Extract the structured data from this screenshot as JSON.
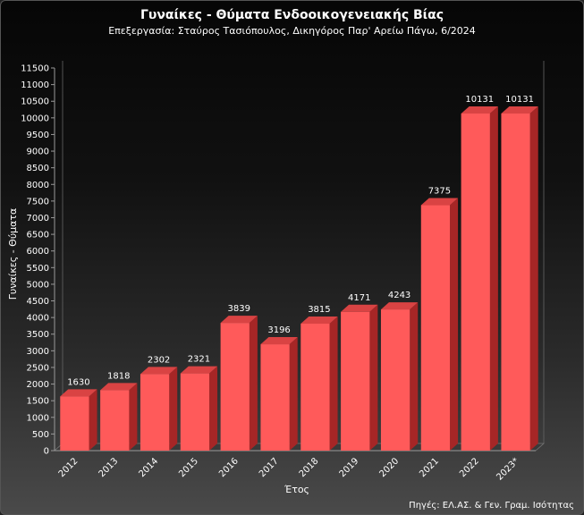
{
  "chart_data": {
    "type": "bar",
    "title": "Γυναίκες - Θύματα Ενδοοικογενειακής Βίας",
    "subtitle": "Επεξεργασία: Σταύρος Τασιόπουλος, Δικηγόρος Παρ' Αρείω Πάγω, 6/2024",
    "xlabel": "Έτος",
    "ylabel": "Γυναίκες - Θύματα",
    "categories": [
      "2012",
      "2013",
      "2014",
      "2015",
      "2016",
      "2017",
      "2018",
      "2019",
      "2020",
      "2021",
      "2022",
      "2023*"
    ],
    "values": [
      1630,
      1818,
      2302,
      2321,
      3839,
      3196,
      3815,
      4171,
      4243,
      7375,
      10131,
      10131
    ],
    "ylim": [
      0,
      11500
    ],
    "yticks": [
      0,
      500,
      1000,
      1500,
      2000,
      2500,
      3000,
      3500,
      4000,
      4500,
      5000,
      5500,
      6000,
      6500,
      7000,
      7500,
      8000,
      8500,
      9000,
      9500,
      10000,
      10500,
      11000,
      11500
    ],
    "data_labels": [
      "1630",
      "1818",
      "2302",
      "2321",
      "3839",
      "3196",
      "3815",
      "4171",
      "4243",
      "7375",
      "10131",
      "10131"
    ],
    "grid": false,
    "legend": "none",
    "source": "Πηγές: ΕΛ.ΑΣ. & Γεν. Γραμ. Ισότητας",
    "colors": {
      "bar_front": "#ff5a5a",
      "bar_top": "#d94343",
      "bar_side": "#a62626",
      "text": "#ffffff"
    }
  }
}
